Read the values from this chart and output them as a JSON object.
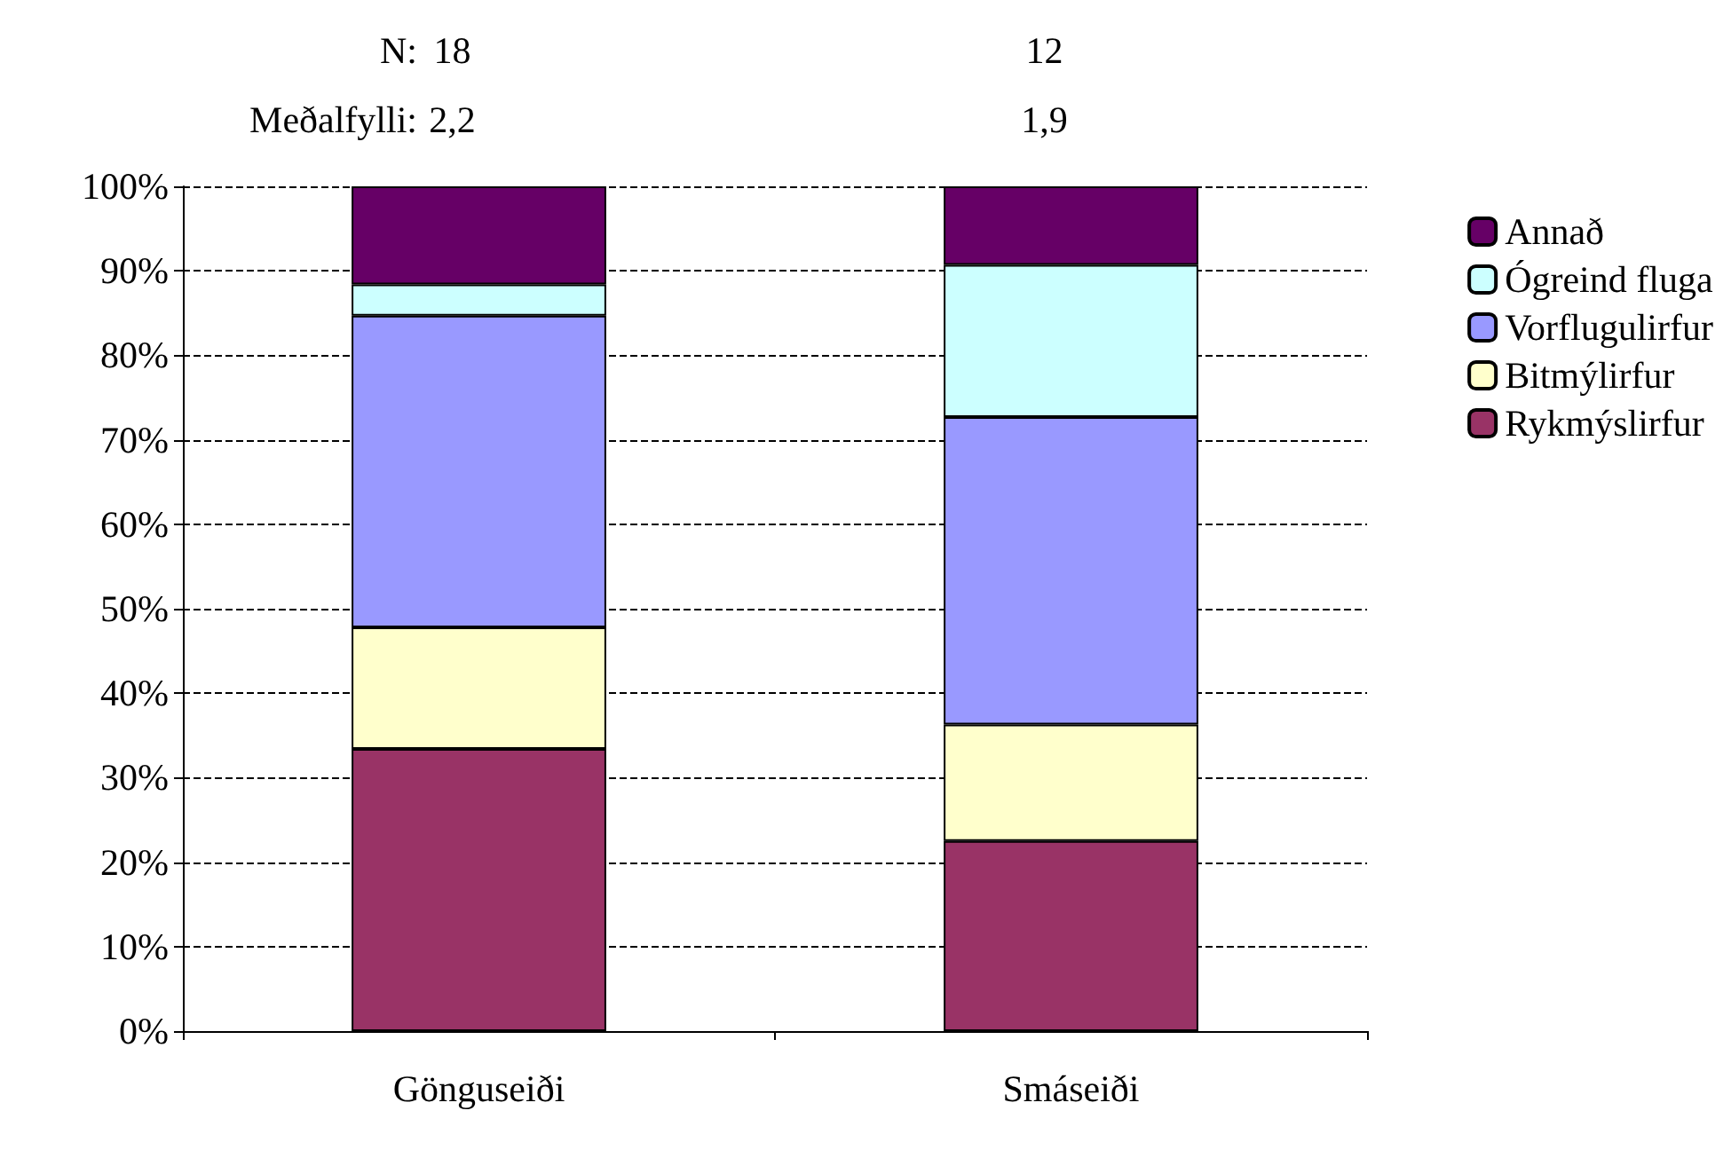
{
  "chart_data": {
    "type": "bar",
    "stacked": true,
    "categories": [
      "Gönguseiði",
      "Smáseiði"
    ],
    "series": [
      {
        "name": "Rykmýslirfur",
        "color": "#993366",
        "values": [
          33.4,
          22.5
        ]
      },
      {
        "name": "Bitmýlirfur",
        "color": "#ffffcc",
        "values": [
          14.4,
          13.8
        ]
      },
      {
        "name": "Vorflugulirfur",
        "color": "#9999ff",
        "values": [
          36.9,
          36.4
        ]
      },
      {
        "name": "Ógreind fluga",
        "color": "#ccffff",
        "values": [
          3.7,
          18.0
        ]
      },
      {
        "name": "Annað",
        "color": "#660066",
        "values": [
          11.6,
          9.3
        ]
      }
    ],
    "ylim": [
      0,
      100
    ],
    "yticks": [
      {
        "value": 0,
        "label": "0%"
      },
      {
        "value": 10,
        "label": "10%"
      },
      {
        "value": 20,
        "label": "20%"
      },
      {
        "value": 30,
        "label": "30%"
      },
      {
        "value": 40,
        "label": "40%"
      },
      {
        "value": 50,
        "label": "50%"
      },
      {
        "value": 60,
        "label": "60%"
      },
      {
        "value": 70,
        "label": "70%"
      },
      {
        "value": 80,
        "label": "80%"
      },
      {
        "value": 90,
        "label": "90%"
      },
      {
        "value": 100,
        "label": "100%"
      }
    ],
    "grid": "y",
    "line_style": "dashed",
    "legend": "right",
    "annotations": [
      "N:",
      "18",
      "12",
      "Meðalfylli:",
      "2,2",
      "1,9"
    ]
  }
}
